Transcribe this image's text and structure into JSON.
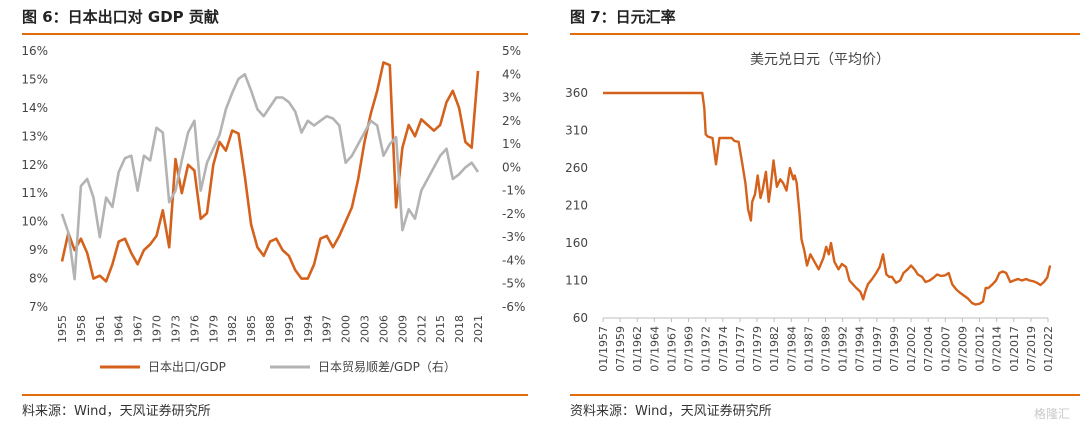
{
  "left": {
    "title": "图 6：日本出口对 GDP 贡献",
    "source": "料来源：Wind，天风证券研究所"
  },
  "right": {
    "title": "图 7：日元汇率",
    "source": "资料来源：Wind，天风证券研究所"
  },
  "watermark": "格隆汇",
  "chart_data": [
    {
      "type": "line",
      "title": "",
      "xlabel": "",
      "ylabel": "",
      "x": [
        1955,
        1956,
        1957,
        1958,
        1959,
        1960,
        1961,
        1962,
        1963,
        1964,
        1965,
        1966,
        1967,
        1968,
        1969,
        1970,
        1971,
        1972,
        1973,
        1974,
        1975,
        1976,
        1977,
        1978,
        1979,
        1980,
        1981,
        1982,
        1983,
        1984,
        1985,
        1986,
        1987,
        1988,
        1989,
        1990,
        1991,
        1992,
        1993,
        1994,
        1995,
        1996,
        1997,
        1998,
        1999,
        2000,
        2001,
        2002,
        2003,
        2004,
        2005,
        2006,
        2007,
        2008,
        2009,
        2010,
        2011,
        2012,
        2013,
        2014,
        2015,
        2016,
        2017,
        2018,
        2019,
        2020,
        2021
      ],
      "x_ticks": [
        "1955",
        "1958",
        "1961",
        "1964",
        "1967",
        "1970",
        "1973",
        "1976",
        "1979",
        "1982",
        "1985",
        "1988",
        "1991",
        "1994",
        "1997",
        "2000",
        "2003",
        "2006",
        "2009",
        "2012",
        "2015",
        "2018",
        "2021"
      ],
      "ylim_left": [
        7,
        16
      ],
      "yticks_left": [
        "7%",
        "8%",
        "9%",
        "10%",
        "11%",
        "12%",
        "13%",
        "14%",
        "15%",
        "16%"
      ],
      "ylim_right": [
        -6,
        5
      ],
      "yticks_right": [
        "-6%",
        "-5%",
        "-4%",
        "-3%",
        "-2%",
        "-1%",
        "0%",
        "1%",
        "2%",
        "3%",
        "4%",
        "5%"
      ],
      "legend_position": "bottom",
      "series": [
        {
          "name": "日本出口/GDP",
          "axis": "left",
          "color": "#d4621c",
          "values": [
            8.6,
            9.6,
            9.0,
            9.4,
            8.9,
            8.0,
            8.1,
            7.9,
            8.5,
            9.3,
            9.4,
            8.9,
            8.5,
            9.0,
            9.2,
            9.5,
            10.4,
            9.1,
            12.2,
            11.0,
            12.0,
            11.8,
            10.1,
            10.3,
            12.0,
            12.8,
            12.5,
            13.2,
            13.1,
            11.6,
            9.9,
            9.1,
            8.8,
            9.3,
            9.4,
            9.0,
            8.8,
            8.3,
            8.0,
            8.0,
            8.5,
            9.4,
            9.5,
            9.1,
            9.5,
            10.0,
            10.5,
            11.5,
            12.8,
            13.8,
            14.6,
            15.6,
            15.5,
            10.5,
            12.6,
            13.4,
            13.0,
            13.6,
            13.4,
            13.2,
            13.4,
            14.2,
            14.6,
            14.0,
            12.8,
            12.6,
            15.3
          ]
        },
        {
          "name": "日本贸易顺差/GDP（右）",
          "axis": "right",
          "color": "#b3b3b3",
          "values": [
            -2.0,
            -2.8,
            -4.8,
            -0.8,
            -0.5,
            -1.3,
            -3.0,
            -1.3,
            -1.7,
            -0.2,
            0.4,
            0.5,
            -1.0,
            0.5,
            0.3,
            1.7,
            1.5,
            -1.5,
            -1.0,
            0.3,
            1.5,
            2.0,
            -1.0,
            0.2,
            0.8,
            1.4,
            2.5,
            3.2,
            3.8,
            4.0,
            3.3,
            2.5,
            2.2,
            2.6,
            3.0,
            3.0,
            2.8,
            2.4,
            1.5,
            2.0,
            1.8,
            2.0,
            2.2,
            2.1,
            1.8,
            0.2,
            0.5,
            1.0,
            1.5,
            2.0,
            1.8,
            0.5,
            1.0,
            1.3,
            -2.7,
            -1.8,
            -2.2,
            -1.0,
            -0.5,
            0.0,
            0.5,
            0.8,
            -0.5,
            -0.3,
            0.0,
            0.2,
            -0.2
          ]
        }
      ]
    },
    {
      "type": "line",
      "title": "美元兑日元（平均价）",
      "xlabel": "",
      "ylabel": "",
      "x_ticks": [
        "01/1957",
        "07/1959",
        "01/1962",
        "07/1964",
        "01/1967",
        "07/1969",
        "01/1972",
        "07/1974",
        "01/1977",
        "07/1979",
        "01/1982",
        "07/1984",
        "01/1987",
        "07/1989",
        "01/1992",
        "07/1994",
        "01/1997",
        "07/1999",
        "01/2002",
        "07/2004",
        "01/2007",
        "07/2009",
        "01/2012",
        "07/2014",
        "01/2017",
        "07/2019",
        "01/2022"
      ],
      "ylim": [
        60,
        380
      ],
      "yticks": [
        "60",
        "110",
        "160",
        "210",
        "260",
        "310",
        "360"
      ],
      "series": [
        {
          "name": "",
          "color": "#d4621c",
          "x": [
            1957.0,
            1971.5,
            1971.8,
            1972.0,
            1972.3,
            1973.0,
            1973.5,
            1974.0,
            1974.6,
            1975.2,
            1975.8,
            1976.2,
            1976.8,
            1977.3,
            1977.8,
            1978.2,
            1978.6,
            1978.8,
            1979.2,
            1979.6,
            1980.0,
            1980.3,
            1980.8,
            1981.2,
            1981.5,
            1981.9,
            1982.4,
            1982.9,
            1983.3,
            1983.8,
            1984.3,
            1984.8,
            1985.0,
            1985.3,
            1985.7,
            1986.0,
            1986.4,
            1986.8,
            1987.3,
            1987.9,
            1988.5,
            1989.2,
            1989.6,
            1990.0,
            1990.3,
            1990.8,
            1991.4,
            1991.9,
            1992.5,
            1993.0,
            1993.5,
            1994.0,
            1994.6,
            1995.0,
            1995.3,
            1995.7,
            1996.3,
            1996.9,
            1997.4,
            1997.9,
            1998.4,
            1998.8,
            1999.2,
            1999.8,
            2000.4,
            2000.9,
            2001.5,
            2002.0,
            2002.5,
            2003.0,
            2003.6,
            2004.1,
            2004.7,
            2005.3,
            2005.8,
            2006.4,
            2007.0,
            2007.5,
            2008.0,
            2008.6,
            2009.1,
            2009.7,
            2010.3,
            2010.9,
            2011.4,
            2012.0,
            2012.5,
            2012.9,
            2013.3,
            2013.9,
            2014.4,
            2014.9,
            2015.4,
            2015.9,
            2016.5,
            2017.0,
            2017.6,
            2018.2,
            2018.8,
            2019.3,
            2019.9,
            2020.4,
            2020.9,
            2021.4,
            2021.9,
            2022.3
          ],
          "values": [
            360,
            360,
            340,
            305,
            302,
            300,
            265,
            300,
            300,
            300,
            300,
            296,
            295,
            268,
            240,
            205,
            190,
            215,
            225,
            250,
            220,
            230,
            255,
            215,
            235,
            270,
            235,
            245,
            240,
            230,
            260,
            245,
            250,
            240,
            200,
            165,
            150,
            130,
            145,
            135,
            125,
            140,
            155,
            145,
            160,
            135,
            125,
            132,
            128,
            110,
            105,
            100,
            95,
            85,
            95,
            105,
            112,
            120,
            128,
            145,
            118,
            115,
            115,
            107,
            110,
            120,
            125,
            130,
            125,
            118,
            115,
            108,
            110,
            114,
            118,
            116,
            117,
            120,
            105,
            98,
            94,
            90,
            86,
            80,
            78,
            79,
            82,
            100,
            100,
            105,
            110,
            120,
            122,
            120,
            108,
            110,
            112,
            110,
            112,
            110,
            109,
            107,
            104,
            108,
            114,
            130
          ]
        }
      ]
    }
  ]
}
